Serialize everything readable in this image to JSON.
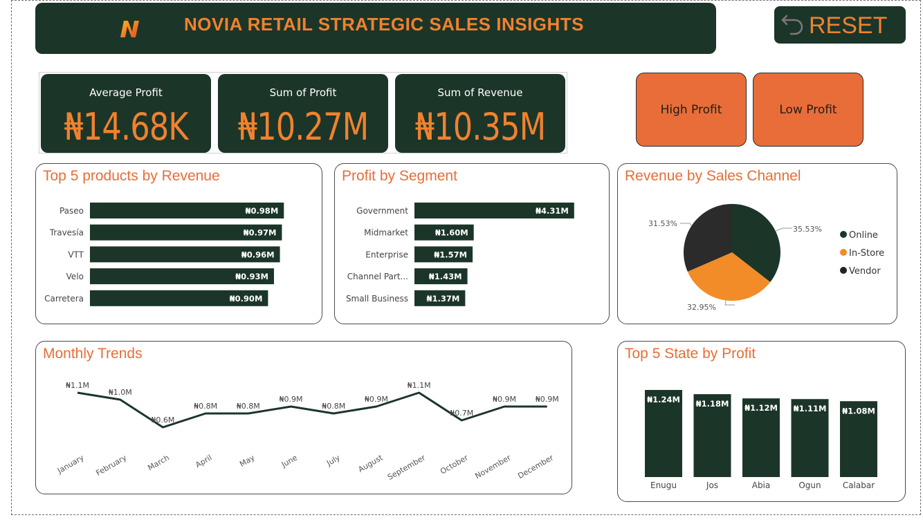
{
  "header": {
    "title": "NOVIA RETAIL STRATEGIC SALES INSIGHTS",
    "logo": "N-logo-icon"
  },
  "reset": {
    "label": "RESET",
    "icon": "undo-arrow-icon"
  },
  "kpis": [
    {
      "label": "Average Profit",
      "value": "₦14.68K"
    },
    {
      "label": "Sum of Profit",
      "value": "₦10.27M"
    },
    {
      "label": "Sum of Revenue",
      "value": "₦10.35M"
    }
  ],
  "filters": {
    "high": "High Profit",
    "low": "Low Profit"
  },
  "colors": {
    "dark": "#1c3529",
    "orange": "#f0822e",
    "accent": "#e86d38",
    "vendor": "#2b2b2b"
  },
  "chart_data": [
    {
      "id": "products",
      "type": "bar",
      "orientation": "horizontal",
      "title": "Top 5 products by Revenue",
      "categories": [
        "Paseo",
        "Travesía",
        "VTT",
        "Velo",
        "Carretera"
      ],
      "values": [
        0.98,
        0.97,
        0.96,
        0.93,
        0.9
      ],
      "labels": [
        "₦0.98M",
        "₦0.97M",
        "₦0.96M",
        "₦0.93M",
        "₦0.90M"
      ],
      "xlim": [
        0,
        1
      ]
    },
    {
      "id": "segment",
      "type": "bar",
      "orientation": "horizontal",
      "title": "Profit by Segment",
      "categories": [
        "Government",
        "Midmarket",
        "Enterprise",
        "Channel Part...",
        "Small Business"
      ],
      "values": [
        4.31,
        1.6,
        1.57,
        1.43,
        1.37
      ],
      "labels": [
        "₦4.31M",
        "₦1.60M",
        "₦1.57M",
        "₦1.43M",
        "₦1.37M"
      ],
      "xlim": [
        0,
        4.5
      ]
    },
    {
      "id": "channel",
      "type": "pie",
      "title": "Revenue by Sales Channel",
      "categories": [
        "Online",
        "In-Store",
        "Vendor"
      ],
      "values": [
        35.53,
        32.95,
        31.53
      ],
      "labels": [
        "35.53%",
        "32.95%",
        "31.53%"
      ],
      "colors": [
        "#1c3529",
        "#f28c28",
        "#2b2b2b"
      ],
      "legend": "right"
    },
    {
      "id": "monthly",
      "type": "line",
      "title": "Monthly Trends",
      "categories": [
        "January",
        "February",
        "March",
        "April",
        "May",
        "June",
        "July",
        "August",
        "September",
        "October",
        "November",
        "December"
      ],
      "values": [
        1.1,
        1.0,
        0.6,
        0.8,
        0.8,
        0.9,
        0.8,
        0.9,
        1.1,
        0.7,
        0.9,
        0.9
      ],
      "labels": [
        "₦1.1M",
        "₦1.0M",
        "₦0.6M",
        "₦0.8M",
        "₦0.8M",
        "₦0.9M",
        "₦0.8M",
        "₦0.9M",
        "₦1.1M",
        "₦0.7M",
        "₦0.9M",
        "₦0.9M"
      ]
    },
    {
      "id": "states",
      "type": "bar",
      "orientation": "vertical",
      "title": "Top 5 State by Profit",
      "categories": [
        "Enugu",
        "Jos",
        "Abia",
        "Ogun",
        "Calabar"
      ],
      "values": [
        1.24,
        1.18,
        1.12,
        1.11,
        1.08
      ],
      "labels": [
        "₦1.24M",
        "₦1.18M",
        "₦1.12M",
        "₦1.11M",
        "₦1.08M"
      ],
      "ylim": [
        0,
        1.24
      ]
    }
  ]
}
